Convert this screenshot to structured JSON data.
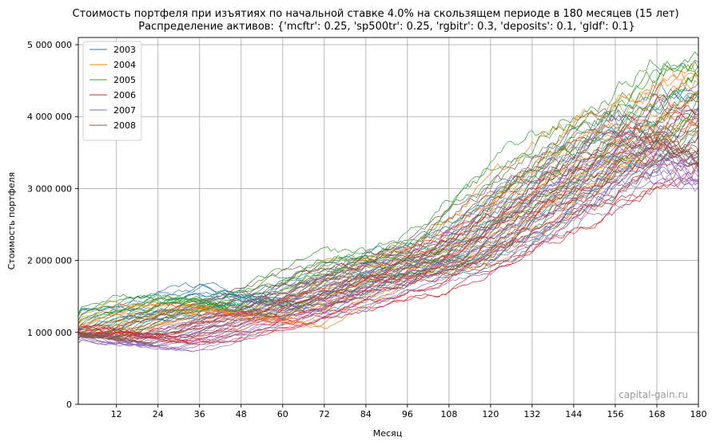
{
  "chart_data": {
    "type": "line",
    "title": "Стоимость портфеля при изъятиях по начальной ставке 4.0% на скользящем периоде в 180 месяцев (15 лет)",
    "subtitle": "Распределение активов: {'mcftr': 0.25, 'sp500tr': 0.25, 'rgbitr': 0.3, 'deposits': 0.1, 'gldf': 0.1}",
    "xlabel": "Месяц",
    "ylabel": "Стоимость портфеля",
    "xlim": [
      1,
      180
    ],
    "ylim": [
      0,
      5100000
    ],
    "xticks": [
      12,
      24,
      36,
      48,
      60,
      72,
      84,
      96,
      108,
      120,
      132,
      144,
      156,
      168,
      180
    ],
    "yticks": [
      0,
      1000000,
      2000000,
      3000000,
      4000000,
      5000000
    ],
    "ytick_labels": [
      "0",
      "1 000 000",
      "2 000 000",
      "3 000 000",
      "4 000 000",
      "5 000 000"
    ],
    "grid": true,
    "legend_position": "top-left",
    "watermark": "capital-gain.ru",
    "lines_per_series": 12,
    "series": [
      {
        "name": "2003",
        "color": "#1f77b4",
        "anchors": [
          [
            1,
            1000000
          ],
          [
            12,
            1250000
          ],
          [
            24,
            1300000
          ],
          [
            36,
            1450000
          ],
          [
            48,
            1550000
          ],
          [
            60,
            1350000
          ],
          [
            72,
            1600000
          ],
          [
            84,
            1800000
          ],
          [
            96,
            1950000
          ],
          [
            108,
            2050000
          ],
          [
            120,
            2350000
          ],
          [
            132,
            2750000
          ],
          [
            144,
            3150000
          ],
          [
            156,
            3500000
          ],
          [
            168,
            3800000
          ],
          [
            180,
            4100000
          ]
        ]
      },
      {
        "name": "2004",
        "color": "#ff7f0e",
        "anchors": [
          [
            1,
            1000000
          ],
          [
            12,
            1150000
          ],
          [
            24,
            1300000
          ],
          [
            36,
            1350000
          ],
          [
            48,
            1250000
          ],
          [
            60,
            1150000
          ],
          [
            72,
            1450000
          ],
          [
            84,
            1800000
          ],
          [
            96,
            1950000
          ],
          [
            108,
            2100000
          ],
          [
            120,
            2450000
          ],
          [
            132,
            2900000
          ],
          [
            144,
            3350000
          ],
          [
            156,
            3650000
          ],
          [
            168,
            3950000
          ],
          [
            180,
            4300000
          ]
        ]
      },
      {
        "name": "2005",
        "color": "#2ca02c",
        "anchors": [
          [
            1,
            1000000
          ],
          [
            12,
            1250000
          ],
          [
            24,
            1400000
          ],
          [
            36,
            1450000
          ],
          [
            48,
            1300000
          ],
          [
            60,
            1500000
          ],
          [
            72,
            1750000
          ],
          [
            84,
            1950000
          ],
          [
            96,
            2000000
          ],
          [
            108,
            2200000
          ],
          [
            120,
            2650000
          ],
          [
            132,
            3100000
          ],
          [
            144,
            3500000
          ],
          [
            156,
            3750000
          ],
          [
            168,
            4050000
          ],
          [
            180,
            4500000
          ]
        ]
      },
      {
        "name": "2006",
        "color": "#d62728",
        "anchors": [
          [
            1,
            1000000
          ],
          [
            12,
            1050000
          ],
          [
            24,
            900000
          ],
          [
            36,
            950000
          ],
          [
            48,
            1100000
          ],
          [
            60,
            1250000
          ],
          [
            72,
            1400000
          ],
          [
            84,
            1550000
          ],
          [
            96,
            1700000
          ],
          [
            108,
            1950000
          ],
          [
            120,
            2250000
          ],
          [
            132,
            2550000
          ],
          [
            144,
            2850000
          ],
          [
            156,
            3150000
          ],
          [
            168,
            3500000
          ],
          [
            180,
            3900000
          ]
        ]
      },
      {
        "name": "2007",
        "color": "#9467bd",
        "anchors": [
          [
            1,
            1000000
          ],
          [
            12,
            850000
          ],
          [
            24,
            800000
          ],
          [
            36,
            950000
          ],
          [
            48,
            1150000
          ],
          [
            60,
            1300000
          ],
          [
            72,
            1450000
          ],
          [
            84,
            1650000
          ],
          [
            96,
            1850000
          ],
          [
            108,
            2050000
          ],
          [
            120,
            2300000
          ],
          [
            132,
            2650000
          ],
          [
            144,
            3000000
          ],
          [
            156,
            3300000
          ],
          [
            168,
            3600000
          ],
          [
            180,
            3000000
          ]
        ]
      },
      {
        "name": "2008",
        "color": "#8c564b",
        "anchors": [
          [
            1,
            1000000
          ],
          [
            12,
            900000
          ],
          [
            24,
            1050000
          ],
          [
            36,
            1200000
          ],
          [
            48,
            1350000
          ],
          [
            60,
            1500000
          ],
          [
            72,
            1700000
          ],
          [
            84,
            1850000
          ],
          [
            96,
            1950000
          ],
          [
            108,
            2100000
          ],
          [
            120,
            2500000
          ],
          [
            132,
            2900000
          ],
          [
            144,
            3250000
          ],
          [
            156,
            3550000
          ],
          [
            168,
            3800000
          ],
          [
            180,
            3300000
          ]
        ]
      }
    ]
  }
}
